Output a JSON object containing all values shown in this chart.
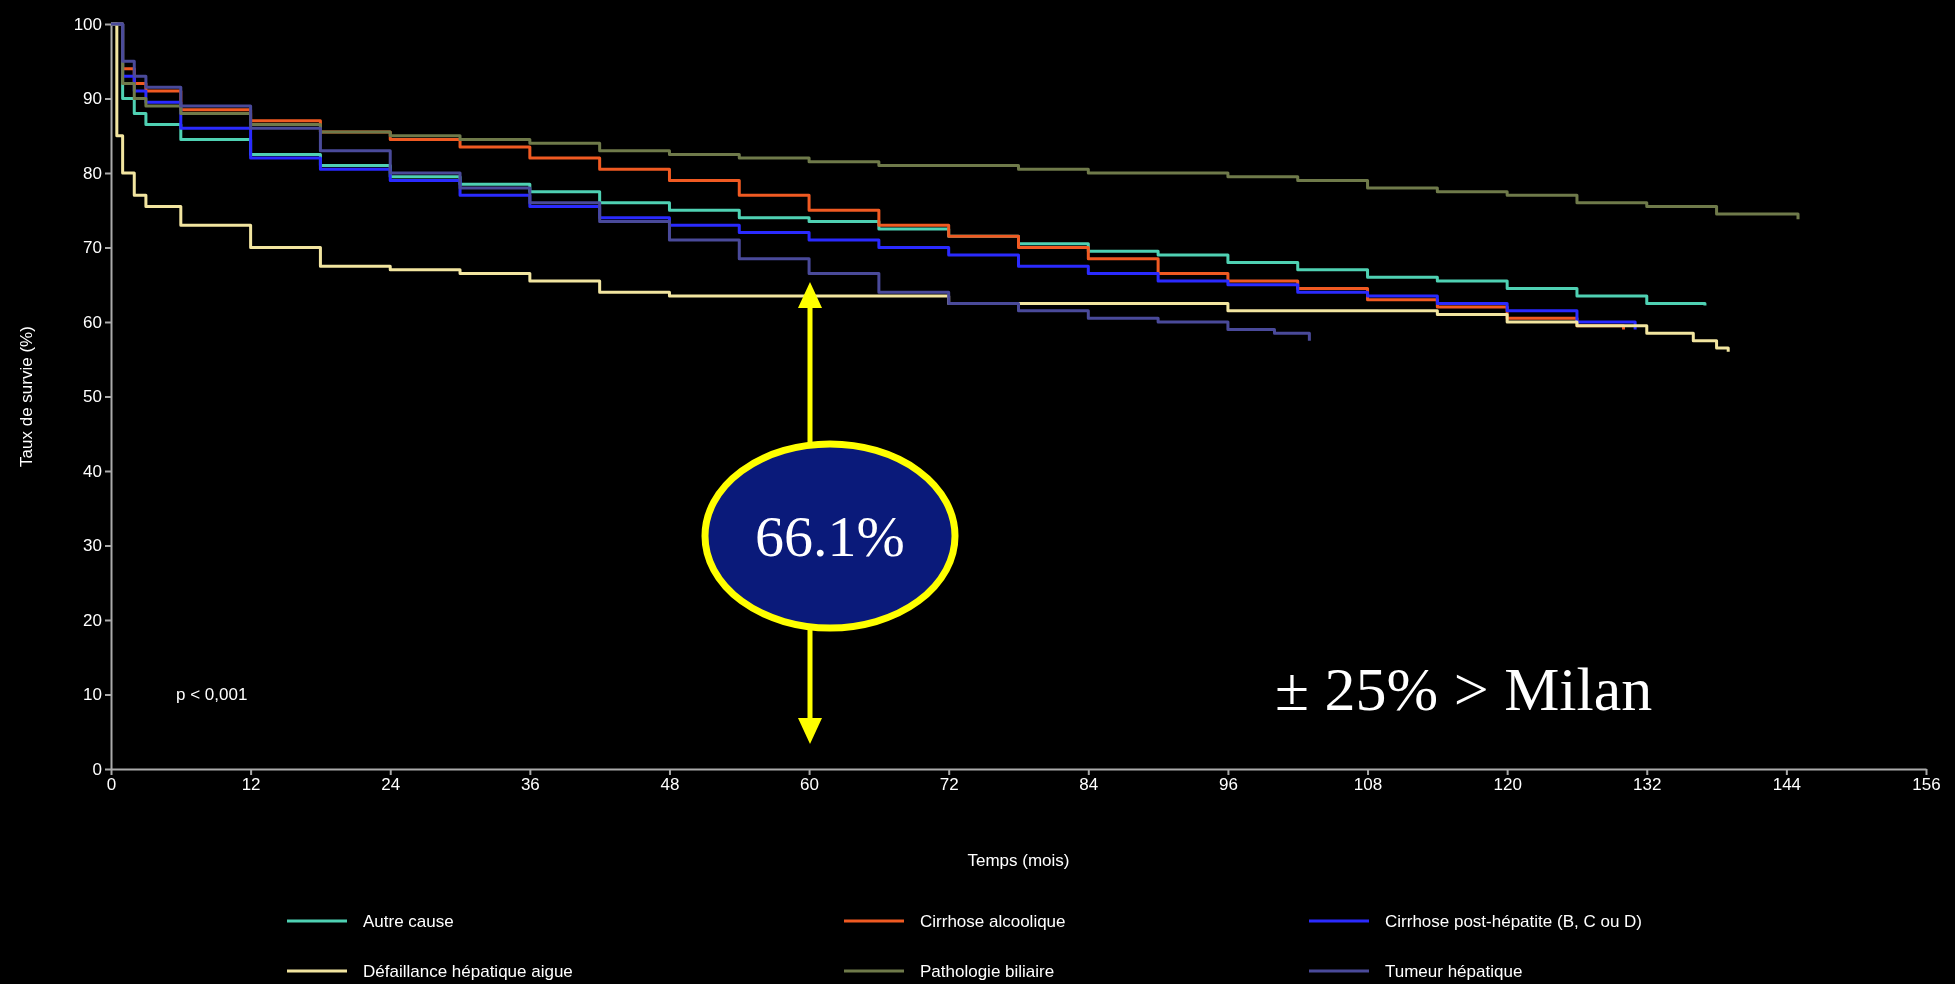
{
  "chart_data": {
    "type": "step",
    "xlabel": "Temps (mois)",
    "ylabel": "Taux de survie (%)",
    "xlim": [
      0,
      156
    ],
    "xticks": [
      0,
      12,
      24,
      36,
      48,
      60,
      72,
      84,
      96,
      108,
      120,
      132,
      144,
      156
    ],
    "ylim": [
      0,
      100
    ],
    "yticks": [
      0,
      10,
      20,
      30,
      40,
      50,
      60,
      70,
      80,
      90,
      100
    ],
    "grid": false,
    "legend": "bottom",
    "annotations": [
      "p < 0,001",
      "± 25% > Milan",
      "66.1%"
    ],
    "series": [
      {
        "name": "Autre cause",
        "color": "#4fd1b3",
        "x": [
          0,
          1,
          2,
          3,
          6,
          12,
          18,
          24,
          30,
          36,
          42,
          48,
          54,
          60,
          66,
          72,
          78,
          84,
          90,
          96,
          102,
          108,
          114,
          120,
          126,
          132,
          137
        ],
        "values": [
          100,
          90,
          88,
          86.5,
          84.5,
          82.5,
          81,
          79.5,
          78.5,
          77.5,
          76,
          75,
          74,
          73.5,
          72.5,
          71.5,
          70.5,
          69.5,
          69,
          68,
          67,
          66,
          65.5,
          64.5,
          63.5,
          62.5,
          62.2
        ]
      },
      {
        "name": "Cirrhose alcoolique",
        "color": "#f05a22",
        "x": [
          0,
          1,
          2,
          3,
          6,
          12,
          18,
          24,
          30,
          36,
          42,
          48,
          54,
          60,
          66,
          72,
          78,
          84,
          90,
          96,
          102,
          108,
          114,
          120,
          126,
          130
        ],
        "values": [
          100,
          94,
          92,
          91,
          88.5,
          87,
          85.5,
          84.5,
          83.5,
          82,
          80.5,
          79,
          77,
          75,
          73,
          71.5,
          70,
          68.5,
          66.5,
          65.5,
          64.5,
          63,
          62,
          60.5,
          59.5,
          59
        ]
      },
      {
        "name": "Cirrhose post-hépatite (B, C ou D)",
        "color": "#2a2aff",
        "x": [
          0,
          1,
          2,
          3,
          6,
          12,
          18,
          24,
          30,
          36,
          42,
          48,
          54,
          60,
          66,
          72,
          78,
          84,
          90,
          96,
          102,
          108,
          114,
          120,
          126,
          131
        ],
        "values": [
          100,
          93,
          91,
          89.5,
          86,
          82,
          80.5,
          79,
          77,
          75.5,
          74,
          73,
          72,
          71,
          70,
          69,
          67.5,
          66.5,
          65.5,
          65,
          64,
          63.5,
          62.5,
          61.5,
          60,
          59
        ]
      },
      {
        "name": "Défaillance hépatique aigue",
        "color": "#f2e5a0",
        "x": [
          0,
          0.5,
          1,
          2,
          3,
          6,
          12,
          18,
          24,
          30,
          36,
          42,
          48,
          54,
          60,
          66,
          72,
          84,
          96,
          108,
          114,
          120,
          126,
          132,
          136,
          138,
          139
        ],
        "values": [
          100,
          85,
          80,
          77,
          75.5,
          73,
          70,
          67.5,
          67,
          66.5,
          65.5,
          64,
          63.5,
          63.5,
          63.5,
          63.5,
          62.5,
          62.5,
          61.5,
          61.5,
          61,
          60,
          59.5,
          58.5,
          57.5,
          56.5,
          56
        ]
      },
      {
        "name": "Pathologie biliaire",
        "color": "#6f7a4a",
        "x": [
          0,
          1,
          2,
          3,
          6,
          12,
          18,
          24,
          30,
          36,
          42,
          48,
          54,
          60,
          66,
          72,
          78,
          84,
          90,
          96,
          102,
          108,
          114,
          120,
          126,
          132,
          138,
          145
        ],
        "values": [
          100,
          92,
          90,
          89,
          88,
          86.5,
          85.5,
          85,
          84.5,
          84,
          83,
          82.5,
          82,
          81.5,
          81,
          81,
          80.5,
          80,
          80,
          79.5,
          79,
          78,
          77.5,
          77,
          76,
          75.5,
          74.5,
          73.8
        ]
      },
      {
        "name": "Tumeur hépatique",
        "color": "#4a4a9a",
        "x": [
          0,
          1,
          2,
          3,
          6,
          12,
          18,
          24,
          30,
          36,
          42,
          48,
          54,
          60,
          66,
          72,
          78,
          84,
          90,
          96,
          100,
          103
        ],
        "values": [
          100,
          95,
          93,
          91.5,
          89,
          86,
          83,
          80,
          78,
          76,
          73.5,
          71,
          68.5,
          66.5,
          64,
          62.5,
          61.5,
          60.5,
          60,
          59,
          58.5,
          57.5
        ]
      }
    ]
  }
}
